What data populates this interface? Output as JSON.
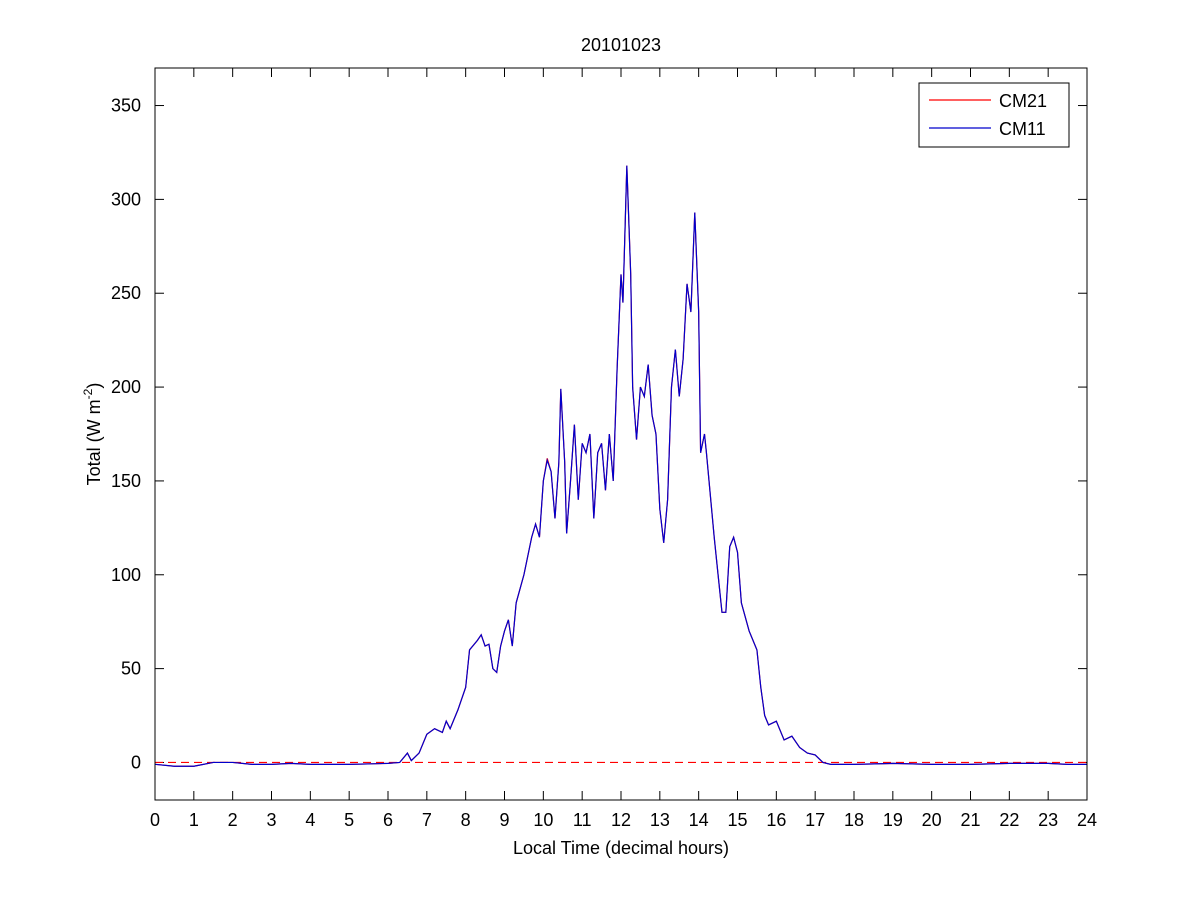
{
  "chart_data": {
    "type": "line",
    "title": "20101023",
    "xlabel": "Local Time (decimal hours)",
    "ylabel": {
      "text": "Total (W m",
      "sup": "-2",
      "end": ")"
    },
    "x": [
      0,
      0.5,
      1,
      1.5,
      2,
      2.5,
      3,
      3.5,
      4,
      5,
      6,
      6.3,
      6.5,
      6.6,
      6.8,
      7,
      7.2,
      7.4,
      7.5,
      7.6,
      7.8,
      8,
      8.1,
      8.3,
      8.4,
      8.5,
      8.6,
      8.7,
      8.8,
      8.9,
      9,
      9.1,
      9.2,
      9.3,
      9.5,
      9.7,
      9.8,
      9.9,
      10,
      10.1,
      10.2,
      10.3,
      10.4,
      10.45,
      10.55,
      10.6,
      10.7,
      10.8,
      10.85,
      10.9,
      11,
      11.1,
      11.2,
      11.3,
      11.4,
      11.5,
      11.6,
      11.7,
      11.8,
      11.9,
      12,
      12.05,
      12.15,
      12.25,
      12.3,
      12.4,
      12.5,
      12.6,
      12.7,
      12.8,
      12.9,
      13,
      13.1,
      13.2,
      13.3,
      13.4,
      13.5,
      13.6,
      13.7,
      13.8,
      13.9,
      14,
      14.05,
      14.15,
      14.2,
      14.4,
      14.5,
      14.6,
      14.7,
      14.8,
      14.9,
      15,
      15.1,
      15.3,
      15.5,
      15.6,
      15.7,
      15.8,
      16,
      16.2,
      16.4,
      16.6,
      16.8,
      17,
      17.2,
      17.4,
      17.6,
      18,
      19,
      20,
      21,
      22,
      23,
      23.5,
      24
    ],
    "series": [
      {
        "name": "CM21",
        "color": "#ff0000",
        "values": [
          -1,
          -2,
          -2,
          0,
          0,
          -1,
          -1,
          -0.5,
          -1,
          -1,
          -0.5,
          0,
          5,
          1,
          5,
          15,
          18,
          16,
          22,
          18,
          28,
          40,
          60,
          65,
          68,
          62,
          63,
          50,
          48,
          62,
          70,
          76,
          62,
          85,
          100,
          120,
          127,
          120,
          150,
          162,
          155,
          130,
          160,
          199,
          160,
          122,
          150,
          180,
          160,
          140,
          170,
          165,
          175,
          130,
          165,
          170,
          145,
          175,
          150,
          210,
          260,
          245,
          318,
          260,
          200,
          172,
          200,
          195,
          212,
          185,
          175,
          135,
          117,
          140,
          200,
          220,
          195,
          215,
          255,
          240,
          293,
          240,
          165,
          175,
          165,
          120,
          100,
          80,
          80,
          115,
          120,
          112,
          85,
          70,
          60,
          40,
          25,
          20,
          22,
          12,
          14,
          8,
          5,
          4,
          0,
          -1,
          -1,
          -1,
          -0.5,
          -1,
          -1,
          -0.5,
          -0.5,
          -1,
          -1
        ]
      },
      {
        "name": "CM11",
        "color": "#0000cc",
        "values": [
          -1,
          -2,
          -2,
          0,
          0,
          -1,
          -1,
          -0.5,
          -1,
          -1,
          -0.5,
          0,
          5,
          1,
          5,
          15,
          18,
          16,
          22,
          18,
          28,
          40,
          60,
          65,
          68,
          62,
          63,
          50,
          48,
          62,
          70,
          76,
          62,
          85,
          100,
          120,
          127,
          120,
          150,
          161,
          155,
          130,
          160,
          199,
          160,
          122,
          150,
          180,
          160,
          140,
          170,
          165,
          175,
          130,
          165,
          170,
          145,
          175,
          150,
          210,
          260,
          245,
          318,
          260,
          200,
          172,
          200,
          195,
          212,
          185,
          175,
          135,
          117,
          140,
          200,
          220,
          195,
          215,
          255,
          240,
          293,
          240,
          165,
          175,
          165,
          120,
          100,
          80,
          80,
          115,
          120,
          112,
          85,
          70,
          60,
          40,
          25,
          20,
          22,
          12,
          14,
          8,
          5,
          4,
          0,
          -1,
          -1,
          -1,
          -0.5,
          -1,
          -1,
          -0.5,
          -0.5,
          -1,
          -1
        ]
      }
    ],
    "reference_line": {
      "y": 0,
      "color": "#ff0000"
    },
    "xlim": [
      0,
      24
    ],
    "xticks": [
      0,
      1,
      2,
      3,
      4,
      5,
      6,
      7,
      8,
      9,
      10,
      11,
      12,
      13,
      14,
      15,
      16,
      17,
      18,
      19,
      20,
      21,
      22,
      23,
      24
    ],
    "ylim": [
      -20,
      370
    ],
    "yticks": [
      0,
      50,
      100,
      150,
      200,
      250,
      300,
      350
    ],
    "grid": false,
    "legend": "northeast"
  }
}
